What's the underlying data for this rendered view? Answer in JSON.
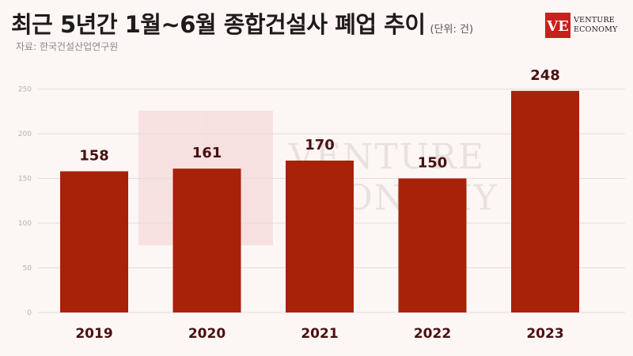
{
  "header": {
    "title": "최근 5년간 1월~6월 종합건설사 폐업 추이",
    "unit": "(단위: 건)",
    "source": "자료: 한국건설산업연구원"
  },
  "logo": {
    "mark": "VE",
    "line1": "VENTURE",
    "line2": "ECONOMY"
  },
  "colors": {
    "bar": "#a8220a",
    "grid": "#e6dcdb",
    "label": "#4a1010",
    "tick": "#b8b0af"
  },
  "chart_data": {
    "type": "bar",
    "title": "최근 5년간 1월~6월 종합건설사 폐업 추이",
    "categories": [
      "2019",
      "2020",
      "2021",
      "2022",
      "2023"
    ],
    "values": [
      158,
      161,
      170,
      150,
      248
    ],
    "ylim": [
      0,
      270
    ],
    "yticks": [
      0,
      50,
      100,
      150,
      200,
      250
    ],
    "grid": true,
    "legend": "none",
    "xlabel": "",
    "ylabel": ""
  }
}
